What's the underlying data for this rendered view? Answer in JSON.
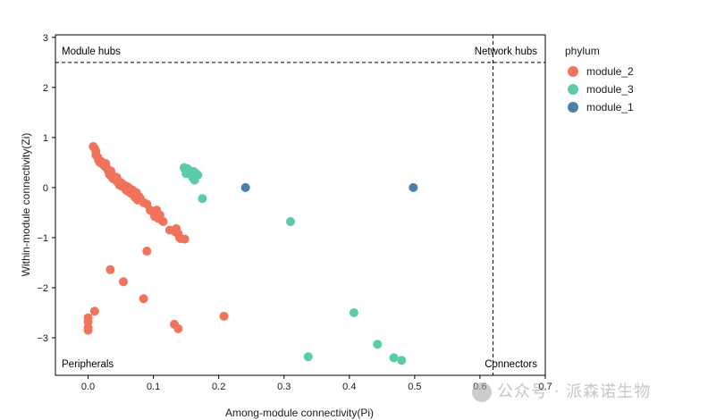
{
  "chart_data": {
    "type": "scatter",
    "title": "",
    "xlabel": "Among-module connectivity(Pi)",
    "ylabel": "Within-module connectivity(Zi)",
    "xlim": [
      -0.05,
      0.7
    ],
    "ylim": [
      -3.75,
      3.05
    ],
    "x_ticks": [
      0.0,
      0.1,
      0.2,
      0.3,
      0.4,
      0.5,
      0.6,
      0.7
    ],
    "x_tick_labels": [
      "0.0",
      "0.1",
      "0.2",
      "0.3",
      "0.4",
      "0.5",
      "0.6",
      "0.7"
    ],
    "y_ticks": [
      3,
      2,
      1,
      0,
      -1,
      -2,
      -3
    ],
    "y_tick_labels": [
      "3",
      "2",
      "1",
      "0",
      "−1",
      "−2",
      "−3"
    ],
    "thresholds": {
      "zi": 2.5,
      "pi": 0.62
    },
    "quadrant_labels": {
      "top_left": "Module hubs",
      "top_right": "Network hubs",
      "bottom_left": "Peripherals",
      "bottom_right": "Connectors"
    },
    "legend": {
      "title": "phylum",
      "position": "right"
    },
    "grid": false,
    "series": [
      {
        "name": "module_2",
        "color": "#F0735A",
        "points": [
          [
            0.008,
            0.82
          ],
          [
            0.01,
            0.78
          ],
          [
            0.012,
            0.72
          ],
          [
            0.012,
            0.65
          ],
          [
            0.015,
            0.6
          ],
          [
            0.016,
            0.55
          ],
          [
            0.018,
            0.5
          ],
          [
            0.02,
            0.52
          ],
          [
            0.022,
            0.47
          ],
          [
            0.025,
            0.43
          ],
          [
            0.027,
            0.48
          ],
          [
            0.028,
            0.4
          ],
          [
            0.03,
            0.36
          ],
          [
            0.032,
            0.3
          ],
          [
            0.033,
            0.26
          ],
          [
            0.035,
            0.33
          ],
          [
            0.036,
            0.22
          ],
          [
            0.038,
            0.18
          ],
          [
            0.04,
            0.22
          ],
          [
            0.042,
            0.15
          ],
          [
            0.044,
            0.2
          ],
          [
            0.046,
            0.1
          ],
          [
            0.048,
            0.05
          ],
          [
            0.05,
            0.1
          ],
          [
            0.052,
            0.02
          ],
          [
            0.054,
            0.06
          ],
          [
            0.056,
            0.0
          ],
          [
            0.058,
            -0.05
          ],
          [
            0.06,
            0.02
          ],
          [
            0.062,
            -0.08
          ],
          [
            0.064,
            -0.02
          ],
          [
            0.066,
            -0.12
          ],
          [
            0.068,
            -0.05
          ],
          [
            0.07,
            -0.15
          ],
          [
            0.072,
            -0.2
          ],
          [
            0.074,
            -0.1
          ],
          [
            0.076,
            -0.25
          ],
          [
            0.078,
            -0.18
          ],
          [
            0.08,
            -0.22
          ],
          [
            0.085,
            -0.3
          ],
          [
            0.09,
            -0.33
          ],
          [
            0.095,
            -0.45
          ],
          [
            0.1,
            -0.5
          ],
          [
            0.102,
            -0.58
          ],
          [
            0.105,
            -0.45
          ],
          [
            0.108,
            -0.62
          ],
          [
            0.11,
            -0.55
          ],
          [
            0.115,
            -0.68
          ],
          [
            0.125,
            -0.85
          ],
          [
            0.133,
            -0.88
          ],
          [
            0.135,
            -0.82
          ],
          [
            0.138,
            -0.92
          ],
          [
            0.14,
            -1.0
          ],
          [
            0.142,
            -1.02
          ],
          [
            0.148,
            -1.03
          ],
          [
            0.09,
            -1.27
          ],
          [
            0.034,
            -1.64
          ],
          [
            0.054,
            -1.88
          ],
          [
            0.085,
            -2.22
          ],
          [
            0.01,
            -2.47
          ],
          [
            0.0,
            -2.6
          ],
          [
            0.0,
            -2.68
          ],
          [
            0.0,
            -2.8
          ],
          [
            0.0,
            -2.85
          ],
          [
            0.132,
            -2.73
          ],
          [
            0.138,
            -2.82
          ],
          [
            0.208,
            -2.57
          ]
        ]
      },
      {
        "name": "module_3",
        "color": "#5ACBAB",
        "points": [
          [
            0.147,
            0.4
          ],
          [
            0.149,
            0.35
          ],
          [
            0.15,
            0.28
          ],
          [
            0.152,
            0.38
          ],
          [
            0.155,
            0.3
          ],
          [
            0.157,
            0.33
          ],
          [
            0.158,
            0.25
          ],
          [
            0.16,
            0.2
          ],
          [
            0.162,
            0.32
          ],
          [
            0.163,
            0.15
          ],
          [
            0.165,
            0.28
          ],
          [
            0.168,
            0.25
          ],
          [
            0.175,
            -0.22
          ],
          [
            0.31,
            -0.68
          ],
          [
            0.407,
            -2.5
          ],
          [
            0.337,
            -3.38
          ],
          [
            0.443,
            -3.13
          ],
          [
            0.468,
            -3.4
          ],
          [
            0.48,
            -3.45
          ]
        ]
      },
      {
        "name": "module_1",
        "color": "#4A7FAA",
        "points": [
          [
            0.241,
            0.0
          ],
          [
            0.498,
            0.0
          ]
        ]
      }
    ]
  },
  "watermark_text": "公众号 · 派森诺生物"
}
